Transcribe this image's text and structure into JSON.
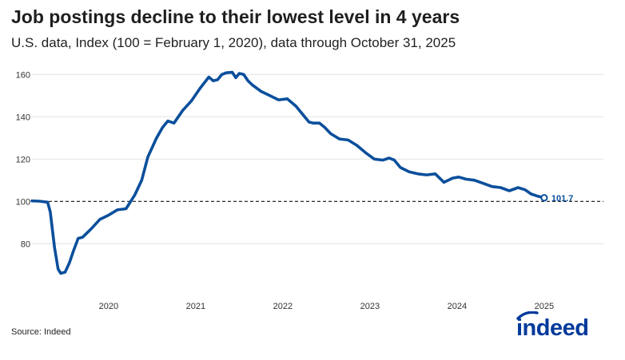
{
  "title": "Job postings decline to their lowest level in 4 years",
  "subtitle": "U.S. data, Index (100 = February 1, 2020), data through October 31, 2025",
  "source": "Source: Indeed",
  "brand": {
    "name": "indeed",
    "color": "#003A9B"
  },
  "colors": {
    "line": "#0b4f9c",
    "reference": "#111111",
    "grid": "#e2e2e2"
  },
  "chart_data": {
    "type": "line",
    "title": "Job postings decline to their lowest level in 4 years",
    "subtitle": "U.S. data, Index (100 = February 1, 2020), data through October 31, 2025",
    "xlabel": "",
    "ylabel": "",
    "xlim": [
      2019.12,
      2025.68
    ],
    "ylim": [
      65,
      162
    ],
    "grid": "horizontal",
    "yticks": [
      80,
      100,
      120,
      140,
      160
    ],
    "xticks": [
      "2020",
      "2021",
      "2022",
      "2023",
      "2024",
      "2025"
    ],
    "reference_line": {
      "y": 100,
      "style": "dashed"
    },
    "end_label": "101.7",
    "series": [
      {
        "x": [
          2019.12,
          2019.2,
          2019.3,
          2019.33,
          2019.38,
          2019.42,
          2019.45,
          2019.5,
          2019.55,
          2019.6,
          2019.65,
          2019.7,
          2019.8,
          2019.9,
          2020.0,
          2020.1,
          2020.2,
          2020.3,
          2020.38,
          2020.45,
          2020.55,
          2020.62,
          2020.68,
          2020.75,
          2020.85,
          2020.95,
          2021.05,
          2021.15,
          2021.2,
          2021.25,
          2021.3,
          2021.35,
          2021.42,
          2021.46,
          2021.5,
          2021.55,
          2021.6,
          2021.65,
          2021.75,
          2021.85,
          2021.95,
          2022.05,
          2022.15,
          2022.25,
          2022.3,
          2022.35,
          2022.42,
          2022.48,
          2022.55,
          2022.65,
          2022.75,
          2022.85,
          2022.95,
          2023.05,
          2023.15,
          2023.22,
          2023.28,
          2023.35,
          2023.45,
          2023.55,
          2023.65,
          2023.75,
          2023.85,
          2023.95,
          2024.02,
          2024.1,
          2024.2,
          2024.3,
          2024.4,
          2024.5,
          2024.6,
          2024.7,
          2024.78,
          2024.85,
          2024.92,
          2025.0
        ],
        "y": [
          100.2,
          100.1,
          99.6,
          95,
          78,
          68,
          66,
          66.5,
          71,
          77,
          82.5,
          83,
          87,
          91.5,
          93.5,
          96,
          96.5,
          103,
          110,
          121,
          130,
          135,
          138,
          137,
          143,
          147.5,
          153.5,
          158.8,
          157,
          157.5,
          160,
          160.8,
          161,
          158.5,
          160.5,
          160,
          157,
          155,
          152,
          150,
          148,
          148.5,
          145,
          140,
          137.5,
          137,
          137,
          135,
          132,
          129.5,
          129,
          126.5,
          123,
          120,
          119.5,
          120.5,
          119.5,
          116,
          114,
          113,
          112.5,
          113,
          109,
          111,
          111.5,
          110.5,
          110,
          108.5,
          107,
          106.5,
          105,
          106.5,
          105.5,
          103.5,
          102.5,
          101.7
        ]
      }
    ]
  }
}
